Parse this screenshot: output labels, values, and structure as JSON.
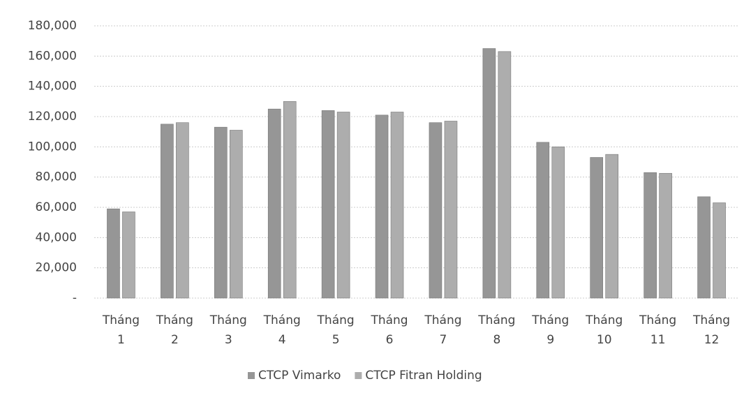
{
  "chart_data": {
    "type": "bar",
    "categories": [
      "Tháng 1",
      "Tháng 2",
      "Tháng 3",
      "Tháng 4",
      "Tháng 5",
      "Tháng 6",
      "Tháng 7",
      "Tháng 8",
      "Tháng 9",
      "Tháng 10",
      "Tháng 11",
      "Tháng 12"
    ],
    "series": [
      {
        "name": "CTCP Vimarko",
        "color": "#969696",
        "values": [
          59000,
          115000,
          113000,
          125000,
          124000,
          121000,
          116000,
          165000,
          103000,
          93000,
          83000,
          67000
        ]
      },
      {
        "name": "CTCP Fitran Holding",
        "color": "#adadad",
        "values": [
          57000,
          116000,
          111000,
          130000,
          123000,
          123000,
          117000,
          163000,
          100000,
          95000,
          82500,
          63000
        ]
      }
    ],
    "ylim": [
      0,
      180000
    ],
    "yticks": [
      {
        "value": 0,
        "label": "-"
      },
      {
        "value": 20000,
        "label": "20,000"
      },
      {
        "value": 40000,
        "label": "40,000"
      },
      {
        "value": 60000,
        "label": "60,000"
      },
      {
        "value": 80000,
        "label": "80,000"
      },
      {
        "value": 100000,
        "label": "100,000"
      },
      {
        "value": 120000,
        "label": "120,000"
      },
      {
        "value": 140000,
        "label": "140,000"
      },
      {
        "value": 160000,
        "label": "160,000"
      },
      {
        "value": 180000,
        "label": "180,000"
      }
    ],
    "grid": true,
    "legend": "bottom"
  }
}
